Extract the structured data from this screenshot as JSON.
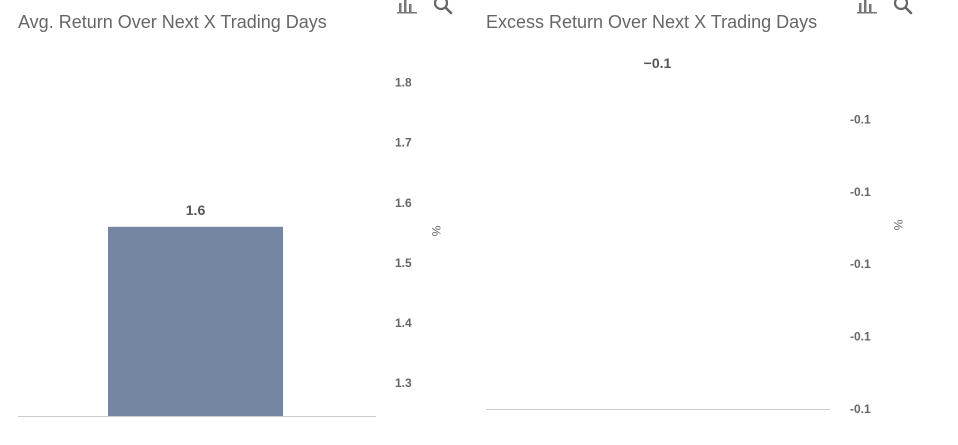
{
  "toolbar": {
    "icons": [
      "bar-chart-icon",
      "magnifier-icon"
    ]
  },
  "chart_data": [
    {
      "type": "bar",
      "title": "Avg. Return Over Next X Trading Days",
      "categories": [
        ""
      ],
      "values": [
        1.56
      ],
      "data_labels": [
        "1.6"
      ],
      "ylabel": "%",
      "yticks": [
        1.3,
        1.4,
        1.5,
        1.6,
        1.7,
        1.8
      ],
      "ytick_labels": [
        "1.3",
        "1.4",
        "1.5",
        "1.6",
        "1.7",
        "1.8"
      ],
      "ylim": [
        1.245,
        1.871
      ],
      "y_axis_position": "right",
      "grid": false,
      "bar_color": "#7586a3"
    },
    {
      "type": "bar",
      "title": "Excess Return Over Next X Trading Days",
      "categories": [
        ""
      ],
      "values": [
        -0.06
      ],
      "data_labels": [
        "−0.1"
      ],
      "ylabel": "%",
      "yticks": [
        -0.11,
        -0.1,
        -0.09,
        -0.08,
        -0.07
      ],
      "ytick_labels": [
        "-0.1",
        "-0.1",
        "-0.1",
        "-0.1",
        "-0.1"
      ],
      "ylim": [
        -0.11,
        -0.06
      ],
      "y_axis_position": "right",
      "grid": false,
      "bar_color": "#7586a3"
    }
  ]
}
